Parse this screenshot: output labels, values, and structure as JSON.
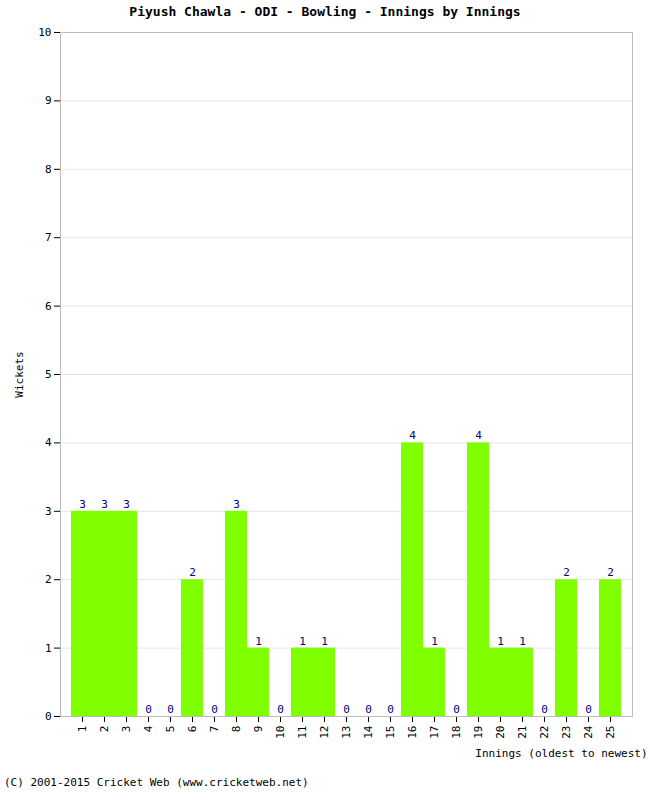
{
  "chart_data": {
    "type": "bar",
    "title": "Piyush Chawla - ODI - Bowling - Innings by Innings",
    "x_label": "Innings (oldest to newest)",
    "y_label": "Wickets",
    "caption": "(C) 2001-2015 Cricket Web (www.cricketweb.net)",
    "categories": [
      "1",
      "2",
      "3",
      "4",
      "5",
      "6",
      "7",
      "8",
      "9",
      "10",
      "11",
      "12",
      "13",
      "14",
      "15",
      "16",
      "17",
      "18",
      "19",
      "20",
      "21",
      "22",
      "23",
      "24",
      "25"
    ],
    "values": [
      3,
      3,
      3,
      0,
      0,
      2,
      0,
      3,
      1,
      0,
      1,
      1,
      0,
      0,
      0,
      4,
      1,
      0,
      4,
      1,
      1,
      0,
      2,
      0,
      2
    ],
    "color": "#7fff00",
    "ylim": [
      0,
      10
    ],
    "yticks": [
      0,
      1,
      2,
      3,
      4,
      5,
      6,
      7,
      8,
      9,
      10
    ],
    "grid": true,
    "data_labels": true
  }
}
